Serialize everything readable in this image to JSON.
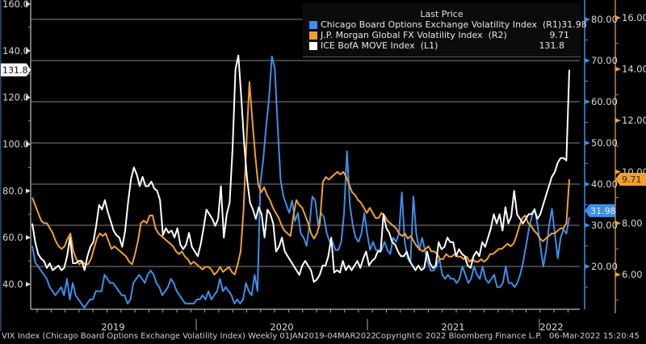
{
  "chart_data": {
    "type": "line",
    "title": "",
    "legend": {
      "title": "Last Price",
      "placement": "top-right",
      "entries": [
        {
          "name": "Chicago Board Options Exchange Volatility Index",
          "axis": "(R1)",
          "last": "31.98",
          "color": "#3d8fe8"
        },
        {
          "name": "J.P. Morgan Global FX Volatility Index",
          "axis": "(R2)",
          "last": "9.71",
          "color": "#f0a030"
        },
        {
          "name": "ICE BofA MOVE Index",
          "axis": "(L1)",
          "last": "131.8",
          "color": "#ffffff"
        }
      ]
    },
    "axes": {
      "L1": {
        "ticks": [
          "160.0",
          "140.0",
          "120.0",
          "100.0",
          "80.0",
          "60.0",
          "40.0"
        ],
        "range": [
          30,
          162
        ],
        "last_badge": "131.8"
      },
      "R1": {
        "ticks": [
          "80.00",
          "70.00",
          "60.00",
          "50.00",
          "40.00",
          "30.00",
          "20.00"
        ],
        "range": [
          10,
          85
        ],
        "last_badge": "31.98"
      },
      "R2": {
        "ticks": [
          "16.00",
          "14.00",
          "12.00",
          "10.00",
          "8.00",
          "6.00"
        ],
        "range": [
          4.7,
          16.7
        ],
        "last_badge": "9.71"
      }
    },
    "x": {
      "start": "01JAN2019",
      "end": "04MAR2022",
      "frequency": "Weekly",
      "year_labels": [
        "2019",
        "2020",
        "2021",
        "2022"
      ]
    },
    "grid": true,
    "series": [
      {
        "name": "ICE BofA MOVE Index",
        "axis": "L1",
        "color": "#ffffff",
        "values": [
          66,
          58,
          53,
          51,
          50,
          47,
          49,
          46,
          47,
          48,
          46,
          47,
          52,
          60,
          49,
          49,
          50,
          50,
          46,
          52,
          56,
          58,
          65,
          74,
          72,
          76,
          71,
          67,
          63,
          61,
          60,
          56,
          63,
          75,
          85,
          90,
          87,
          82,
          86,
          82,
          82,
          84,
          81,
          80,
          76,
          61,
          64,
          62,
          63,
          60,
          64,
          57,
          55,
          57,
          62,
          56,
          54,
          52,
          57,
          64,
          72,
          70,
          68,
          65,
          68,
          82,
          60,
          70,
          75,
          98,
          132,
          138,
          120,
          100,
          85,
          75,
          72,
          68,
          73,
          70,
          60,
          72,
          70,
          66,
          54,
          56,
          60,
          54,
          52,
          50,
          48,
          46,
          44,
          48,
          50,
          48,
          46,
          41,
          42,
          44,
          48,
          48,
          52,
          60,
          45,
          46,
          45,
          50,
          46,
          48,
          46,
          48,
          50,
          47,
          51,
          54,
          48,
          50,
          51,
          54,
          54,
          70,
          64,
          62,
          58,
          57,
          54,
          52,
          52,
          54,
          50,
          48,
          46,
          48,
          46,
          47,
          54,
          49,
          47,
          48,
          58,
          55,
          56,
          60,
          58,
          58,
          52,
          55,
          53,
          52,
          48,
          47,
          52,
          54,
          52,
          58,
          56,
          60,
          64,
          70,
          66,
          70,
          63,
          73,
          66,
          69,
          80,
          70,
          68,
          66,
          68,
          70,
          70,
          72,
          68,
          70,
          74,
          78,
          82,
          86,
          88,
          92,
          94,
          94,
          93,
          131.8
        ]
      },
      {
        "name": "Chicago Board Options Exchange Volatility Index",
        "axis": "R1",
        "color": "#3d8fe8",
        "values": [
          25,
          21,
          20,
          19,
          18,
          17,
          15,
          14,
          13,
          14,
          15,
          13,
          17,
          12,
          16,
          13,
          12,
          11,
          10,
          11,
          12,
          12,
          14,
          14,
          14,
          18,
          17,
          16,
          16,
          15,
          14,
          13,
          13,
          11,
          12,
          16,
          17,
          18,
          17,
          16,
          18,
          19,
          18,
          16,
          15,
          13,
          14,
          15,
          17,
          16,
          14,
          13,
          12,
          11,
          11,
          11,
          11,
          12,
          12,
          13,
          12,
          14,
          12,
          13,
          14,
          17,
          14,
          15,
          14,
          13,
          11,
          12,
          11,
          12,
          16,
          14,
          13,
          18,
          14,
          40,
          46,
          54,
          61,
          71,
          68,
          54,
          41,
          37,
          35,
          33,
          36,
          31,
          33,
          28,
          27,
          25,
          30,
          37,
          36,
          30,
          33,
          32,
          28,
          26,
          26,
          24,
          24,
          26,
          33,
          48,
          35,
          30,
          27,
          26,
          28,
          33,
          28,
          24,
          26,
          24,
          24,
          24,
          26,
          24,
          23,
          27,
          26,
          28,
          38,
          26,
          22,
          21,
          37,
          28,
          24,
          27,
          24,
          21,
          19,
          19,
          20,
          22,
          18,
          17,
          18,
          17,
          17,
          16,
          17,
          20,
          18,
          16,
          17,
          20,
          18,
          17,
          20,
          17,
          16,
          17,
          18,
          15,
          15,
          16,
          20,
          16,
          16,
          15,
          16,
          18,
          21,
          25,
          29,
          32,
          34,
          30,
          25,
          20,
          24,
          30,
          34,
          28,
          22,
          27,
          29,
          28,
          31.98
        ]
      },
      {
        "name": "J.P. Morgan Global FX Volatility Index",
        "axis": "R2",
        "color": "#f0a030",
        "values": [
          9.0,
          8.7,
          8.4,
          8.1,
          8.0,
          8.0,
          7.8,
          7.6,
          7.3,
          7.1,
          7.0,
          7.1,
          7.4,
          7.6,
          6.9,
          6.6,
          6.4,
          6.5,
          6.4,
          6.4,
          6.6,
          7.0,
          7.4,
          7.6,
          7.5,
          7.6,
          7.3,
          7.0,
          7.1,
          7.0,
          6.9,
          6.8,
          6.7,
          6.5,
          6.4,
          6.8,
          7.3,
          8.0,
          8.1,
          8.0,
          8.3,
          8.3,
          7.8,
          7.6,
          7.5,
          7.4,
          7.3,
          7.2,
          7.1,
          6.9,
          6.8,
          6.9,
          6.7,
          6.6,
          6.4,
          6.5,
          6.4,
          6.3,
          6.2,
          6.3,
          6.3,
          6.2,
          6.0,
          6.1,
          6.3,
          6.1,
          6.2,
          6.3,
          6.1,
          6.0,
          6.4,
          6.9,
          8.5,
          11.2,
          13.5,
          12.0,
          10.6,
          9.5,
          9.2,
          9.4,
          9.1,
          8.9,
          8.6,
          8.4,
          8.2,
          7.9,
          7.7,
          7.6,
          7.5,
          8.3,
          8.9,
          8.7,
          8.6,
          8.3,
          8.0,
          7.6,
          7.4,
          7.6,
          8.0,
          9.6,
          9.8,
          9.7,
          9.8,
          9.9,
          10.0,
          9.9,
          10.0,
          9.8,
          9.5,
          9.2,
          9.1,
          8.9,
          8.8,
          8.6,
          8.4,
          8.6,
          8.4,
          8.2,
          8.2,
          8.4,
          8.3,
          8.1,
          8.0,
          7.9,
          7.8,
          7.6,
          7.5,
          7.6,
          7.4,
          7.5,
          7.3,
          7.1,
          7.0,
          6.9,
          7.0,
          7.1,
          6.9,
          6.9,
          6.8,
          6.6,
          6.6,
          6.8,
          6.7,
          6.7,
          6.8,
          6.7,
          6.7,
          6.6,
          6.7,
          6.5,
          6.6,
          6.5,
          6.5,
          6.6,
          6.5,
          6.6,
          6.8,
          6.8,
          6.9,
          7.0,
          7.0,
          7.1,
          7.2,
          7.1,
          7.2,
          7.5,
          7.9,
          8.2,
          8.3,
          8.0,
          7.9,
          7.7,
          7.6,
          7.4,
          7.3,
          7.4,
          7.5,
          7.6,
          7.6,
          7.7,
          7.8,
          7.8,
          8.0,
          9.71
        ]
      }
    ]
  },
  "footer": {
    "left": "VIX Index (Chicago Board Options Exchange Volatility Index)  Weekly 01JAN2019-04MAR2022",
    "center": "Copyright© 2022 Bloomberg Finance L.P.",
    "right": "06-Mar-2022 15:20:45"
  }
}
